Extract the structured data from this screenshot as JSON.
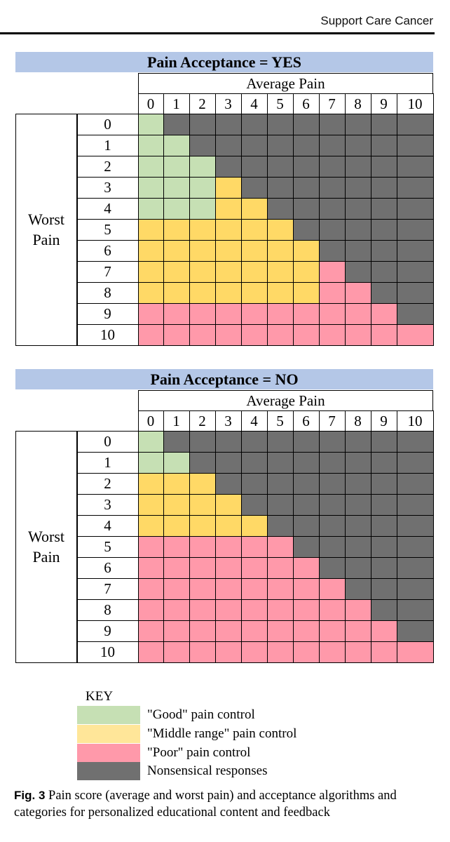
{
  "header": {
    "journal": "Support Care Cancer"
  },
  "colors": {
    "good": "#c6e0b4",
    "middle": "#ffd966",
    "poor": "#ff99aa",
    "nonsense": "#707070",
    "banner": "#b4c7e7"
  },
  "panels": [
    {
      "title": "Pain Acceptance = YES",
      "column_header": "Average Pain",
      "row_header": [
        "Worst",
        "Pain"
      ],
      "columns": [
        "0",
        "1",
        "2",
        "3",
        "4",
        "5",
        "6",
        "7",
        "8",
        "9",
        "10"
      ],
      "rows": [
        "0",
        "1",
        "2",
        "3",
        "4",
        "5",
        "6",
        "7",
        "8",
        "9",
        "10"
      ],
      "grid": [
        "GNNNNNNNNNN",
        "GGNNNNNNNNN",
        "GGGNNNNNNNN",
        "GGGMNNNNNNN",
        "GGGMMNNNNNN",
        "MMMMMMNNNNN",
        "MMMMMMMNNNN",
        "MMMMMMMPNNN",
        "MMMMMMMPPNN",
        "PPPPPPPPPPN",
        "PPPPPPPPPPP"
      ]
    },
    {
      "title": "Pain Acceptance = NO",
      "column_header": "Average Pain",
      "row_header": [
        "Worst",
        "Pain"
      ],
      "columns": [
        "0",
        "1",
        "2",
        "3",
        "4",
        "5",
        "6",
        "7",
        "8",
        "9",
        "10"
      ],
      "rows": [
        "0",
        "1",
        "2",
        "3",
        "4",
        "5",
        "6",
        "7",
        "8",
        "9",
        "10"
      ],
      "grid": [
        "GNNNNNNNNNN",
        "GGNNNNNNNNN",
        "MMMNNNNNNNN",
        "MMMMNNNNNNN",
        "MMMMMNNNNNN",
        "PPPPPPNNNNN",
        "PPPPPPPNNNN",
        "PPPPPPPPNNN",
        "PPPPPPPPPNN",
        "PPPPPPPPPPN",
        "PPPPPPPPPPP"
      ]
    }
  ],
  "legend": {
    "title": "KEY",
    "items": [
      {
        "code": "G",
        "label": "\"Good\" pain control",
        "color": "#c6e0b4"
      },
      {
        "code": "M",
        "label": "\"Middle range\" pain control",
        "color": "#ffe699"
      },
      {
        "code": "P",
        "label": "\"Poor\" pain control",
        "color": "#ff99aa"
      },
      {
        "code": "N",
        "label": "Nonsensical responses",
        "color": "#707070"
      }
    ]
  },
  "caption": {
    "label": "Fig. 3",
    "text": "Pain score (average and worst pain) and acceptance algorithms and categories for personalized educational content and feedback"
  }
}
